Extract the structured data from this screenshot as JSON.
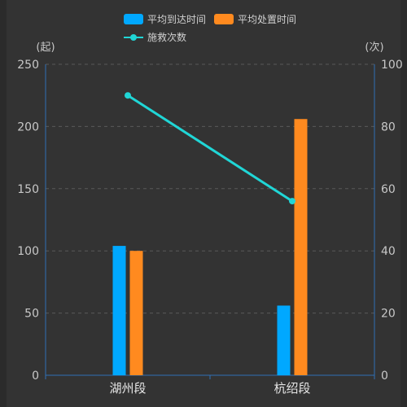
{
  "chart_data": {
    "type": "bar",
    "categories": [
      "湖州段",
      "杭绍段"
    ],
    "series": [
      {
        "name": "平均到达时间",
        "type": "bar",
        "axis": "left",
        "color": "#00a8ff",
        "values": [
          104,
          56
        ]
      },
      {
        "name": "平均处置时间",
        "type": "bar",
        "axis": "left",
        "color": "#ff8a1f",
        "values": [
          100,
          206
        ]
      },
      {
        "name": "施救次数",
        "type": "line",
        "axis": "right",
        "color": "#20d6d6",
        "values": [
          90,
          56
        ]
      }
    ],
    "y_left": {
      "unit": "(起)",
      "min": 0,
      "max": 250,
      "ticks": [
        0,
        50,
        100,
        150,
        200,
        250
      ]
    },
    "y_right": {
      "unit": "(次)",
      "min": 0,
      "max": 100,
      "ticks": [
        0,
        20,
        40,
        60,
        80,
        100
      ]
    },
    "grid": true,
    "legend_position": "top-center",
    "colors": {
      "axis": "#2f6fb6",
      "grid": "#5a5a5a",
      "background": "#333333"
    }
  }
}
